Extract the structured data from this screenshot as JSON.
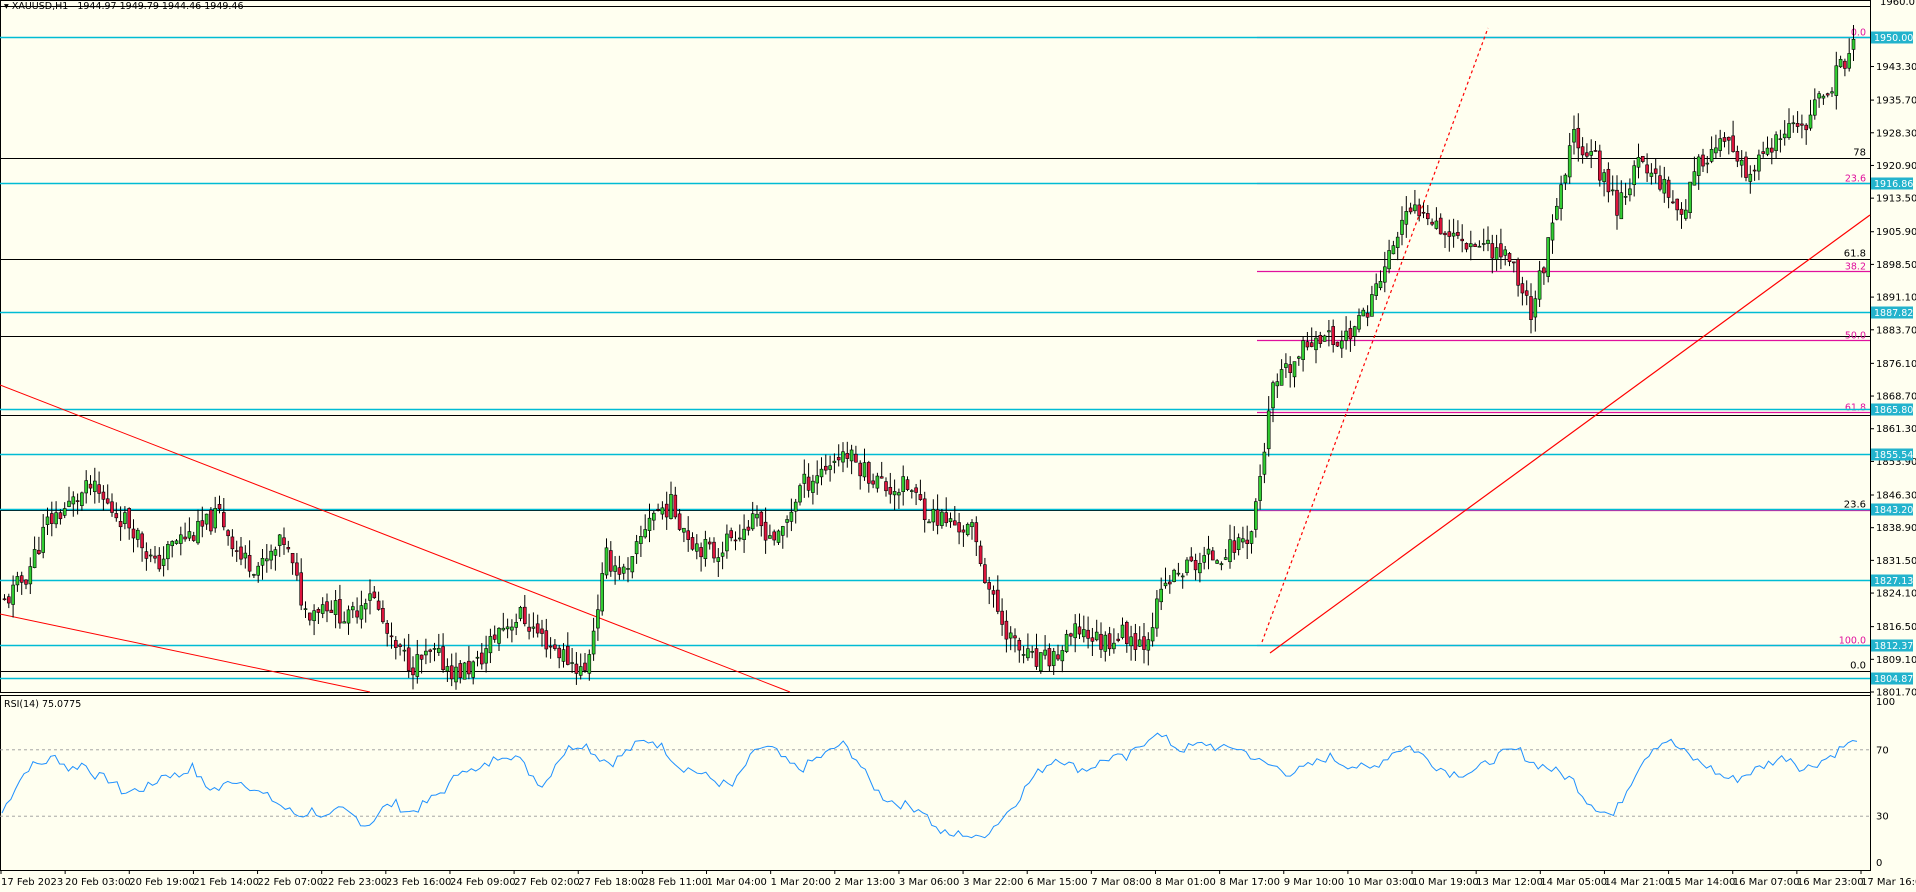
{
  "header": {
    "symbol": "XAUUSD,H1",
    "ohlc": "1944.97 1949.79 1944.46 1949.46"
  },
  "rsi_header": "RSI(14) 75.0775",
  "colors": {
    "background": "#fffff0",
    "bull": "#32cd32",
    "bear": "#dc143c",
    "wick": "#000000",
    "hline": "#00bcd4",
    "fib": "#e0119d",
    "trend": "#ff0000",
    "rsi": "#1e90ff",
    "tag": "#23b3cc"
  },
  "chart_data": {
    "type": "candlestick",
    "title": "XAUUSD,H1",
    "ylim": [
      1801.7,
      1957.0
    ],
    "y_ticks": [
      "1943.30",
      "1935.70",
      "1928.30",
      "1920.90",
      "1913.50",
      "1905.90",
      "1898.50",
      "1891.10",
      "1883.70",
      "1876.10",
      "1868.70",
      "1861.30",
      "1853.90",
      "1846.30",
      "1838.90",
      "1831.50",
      "1824.10",
      "1816.50",
      "1809.10",
      "1801.70"
    ],
    "x_ticks": [
      "17 Feb 2023",
      "20 Feb 03:00",
      "20 Feb 19:00",
      "21 Feb 14:00",
      "22 Feb 07:00",
      "22 Feb 23:00",
      "23 Feb 16:00",
      "24 Feb 09:00",
      "27 Feb 02:00",
      "27 Feb 18:00",
      "28 Feb 11:00",
      "1 Mar 04:00",
      "1 Mar 20:00",
      "2 Mar 13:00",
      "3 Mar 06:00",
      "3 Mar 22:00",
      "6 Mar 15:00",
      "7 Mar 08:00",
      "8 Mar 01:00",
      "8 Mar 17:00",
      "9 Mar 10:00",
      "10 Mar 03:00",
      "10 Mar 19:00",
      "13 Mar 12:00",
      "14 Mar 05:00",
      "14 Mar 21:00",
      "15 Mar 14:00",
      "16 Mar 07:00",
      "16 Mar 23:00",
      "17 Mar 16:00"
    ],
    "close_path": [
      1822,
      1828,
      1840,
      1844,
      1848,
      1843,
      1839,
      1830,
      1836,
      1838,
      1842,
      1832,
      1830,
      1836,
      1820,
      1822,
      1818,
      1825,
      1812,
      1808,
      1810,
      1806,
      1808,
      1816,
      1819,
      1814,
      1810,
      1806,
      1832,
      1828,
      1842,
      1844,
      1836,
      1833,
      1838,
      1840,
      1836,
      1848,
      1852,
      1856,
      1852,
      1848,
      1848,
      1842,
      1840,
      1838,
      1822,
      1812,
      1808,
      1810,
      1816,
      1813,
      1815,
      1813,
      1826,
      1830,
      1832,
      1834,
      1838,
      1870,
      1876,
      1883,
      1881,
      1885,
      1895,
      1908,
      1912,
      1906,
      1904,
      1903,
      1900,
      1888,
      1906,
      1928,
      1922,
      1912,
      1921,
      1918,
      1910,
      1923,
      1926,
      1918,
      1924,
      1928,
      1932,
      1940,
      1948
    ],
    "price_lines": [
      {
        "price": 1950.0,
        "label": "1950.00"
      },
      {
        "price": 1916.86,
        "label": "1916.86"
      },
      {
        "price": 1887.82,
        "label": "1887.82"
      },
      {
        "price": 1865.8,
        "label": "1865.80"
      },
      {
        "price": 1855.54,
        "label": "1855.54"
      },
      {
        "price": 1843.2,
        "label": "1843.20"
      },
      {
        "price": 1827.13,
        "label": "1827.13"
      },
      {
        "price": 1812.37,
        "label": "1812.37"
      },
      {
        "price": 1804.87,
        "label": "1804.87"
      }
    ],
    "black_levels": [
      {
        "price": 1922.7,
        "label": "78"
      },
      {
        "price": 1899.8,
        "label": "61.8"
      },
      {
        "price": 1882.3,
        "label": ""
      },
      {
        "price": 1864.3,
        "label": ""
      },
      {
        "price": 1842.8,
        "label": "23.6"
      },
      {
        "price": 1806.5,
        "label": "0.0"
      }
    ],
    "fib_levels": [
      {
        "price": 1950.0,
        "label": "0.0"
      },
      {
        "price": 1917.0,
        "label": "23.6"
      },
      {
        "price": 1897.1,
        "label": "38.2"
      },
      {
        "price": 1881.3,
        "label": "50.0"
      },
      {
        "price": 1865.2,
        "label": "61.8"
      },
      {
        "price": 1842.8,
        "label": ""
      },
      {
        "price": 1812.4,
        "label": "100.0"
      }
    ],
    "top_tick": "1960.0",
    "rsi": {
      "value": 75.0775,
      "levels": [
        "100",
        "70",
        "30",
        "0"
      ],
      "path": [
        32,
        48,
        60,
        62,
        66,
        58,
        62,
        54,
        52,
        44,
        46,
        48,
        56,
        54,
        60,
        48,
        46,
        52,
        50,
        44,
        40,
        34,
        30,
        34,
        28,
        34,
        30,
        24,
        34,
        38,
        32,
        36,
        42,
        48,
        60,
        56,
        62,
        68,
        66,
        56,
        48,
        64,
        72,
        74,
        66,
        62,
        68,
        74,
        76,
        70,
        60,
        58,
        54,
        50,
        48,
        62,
        72,
        70,
        62,
        58,
        64,
        68,
        74,
        66,
        52,
        42,
        38,
        36,
        34,
        22,
        18,
        20,
        16,
        22,
        30,
        40,
        52,
        60,
        66,
        60,
        58,
        62,
        66,
        64,
        72,
        80,
        76,
        70,
        72,
        74,
        70,
        72,
        68,
        62,
        60,
        56,
        58,
        62,
        66,
        62,
        60,
        58,
        64,
        70,
        72,
        66,
        60,
        56,
        56,
        58,
        64,
        68,
        70,
        62,
        60,
        56,
        52,
        40,
        34,
        30,
        46,
        62,
        72,
        76,
        70,
        64,
        60,
        54,
        52,
        56,
        60,
        64,
        66,
        58,
        62,
        66,
        72,
        75
      ]
    }
  }
}
